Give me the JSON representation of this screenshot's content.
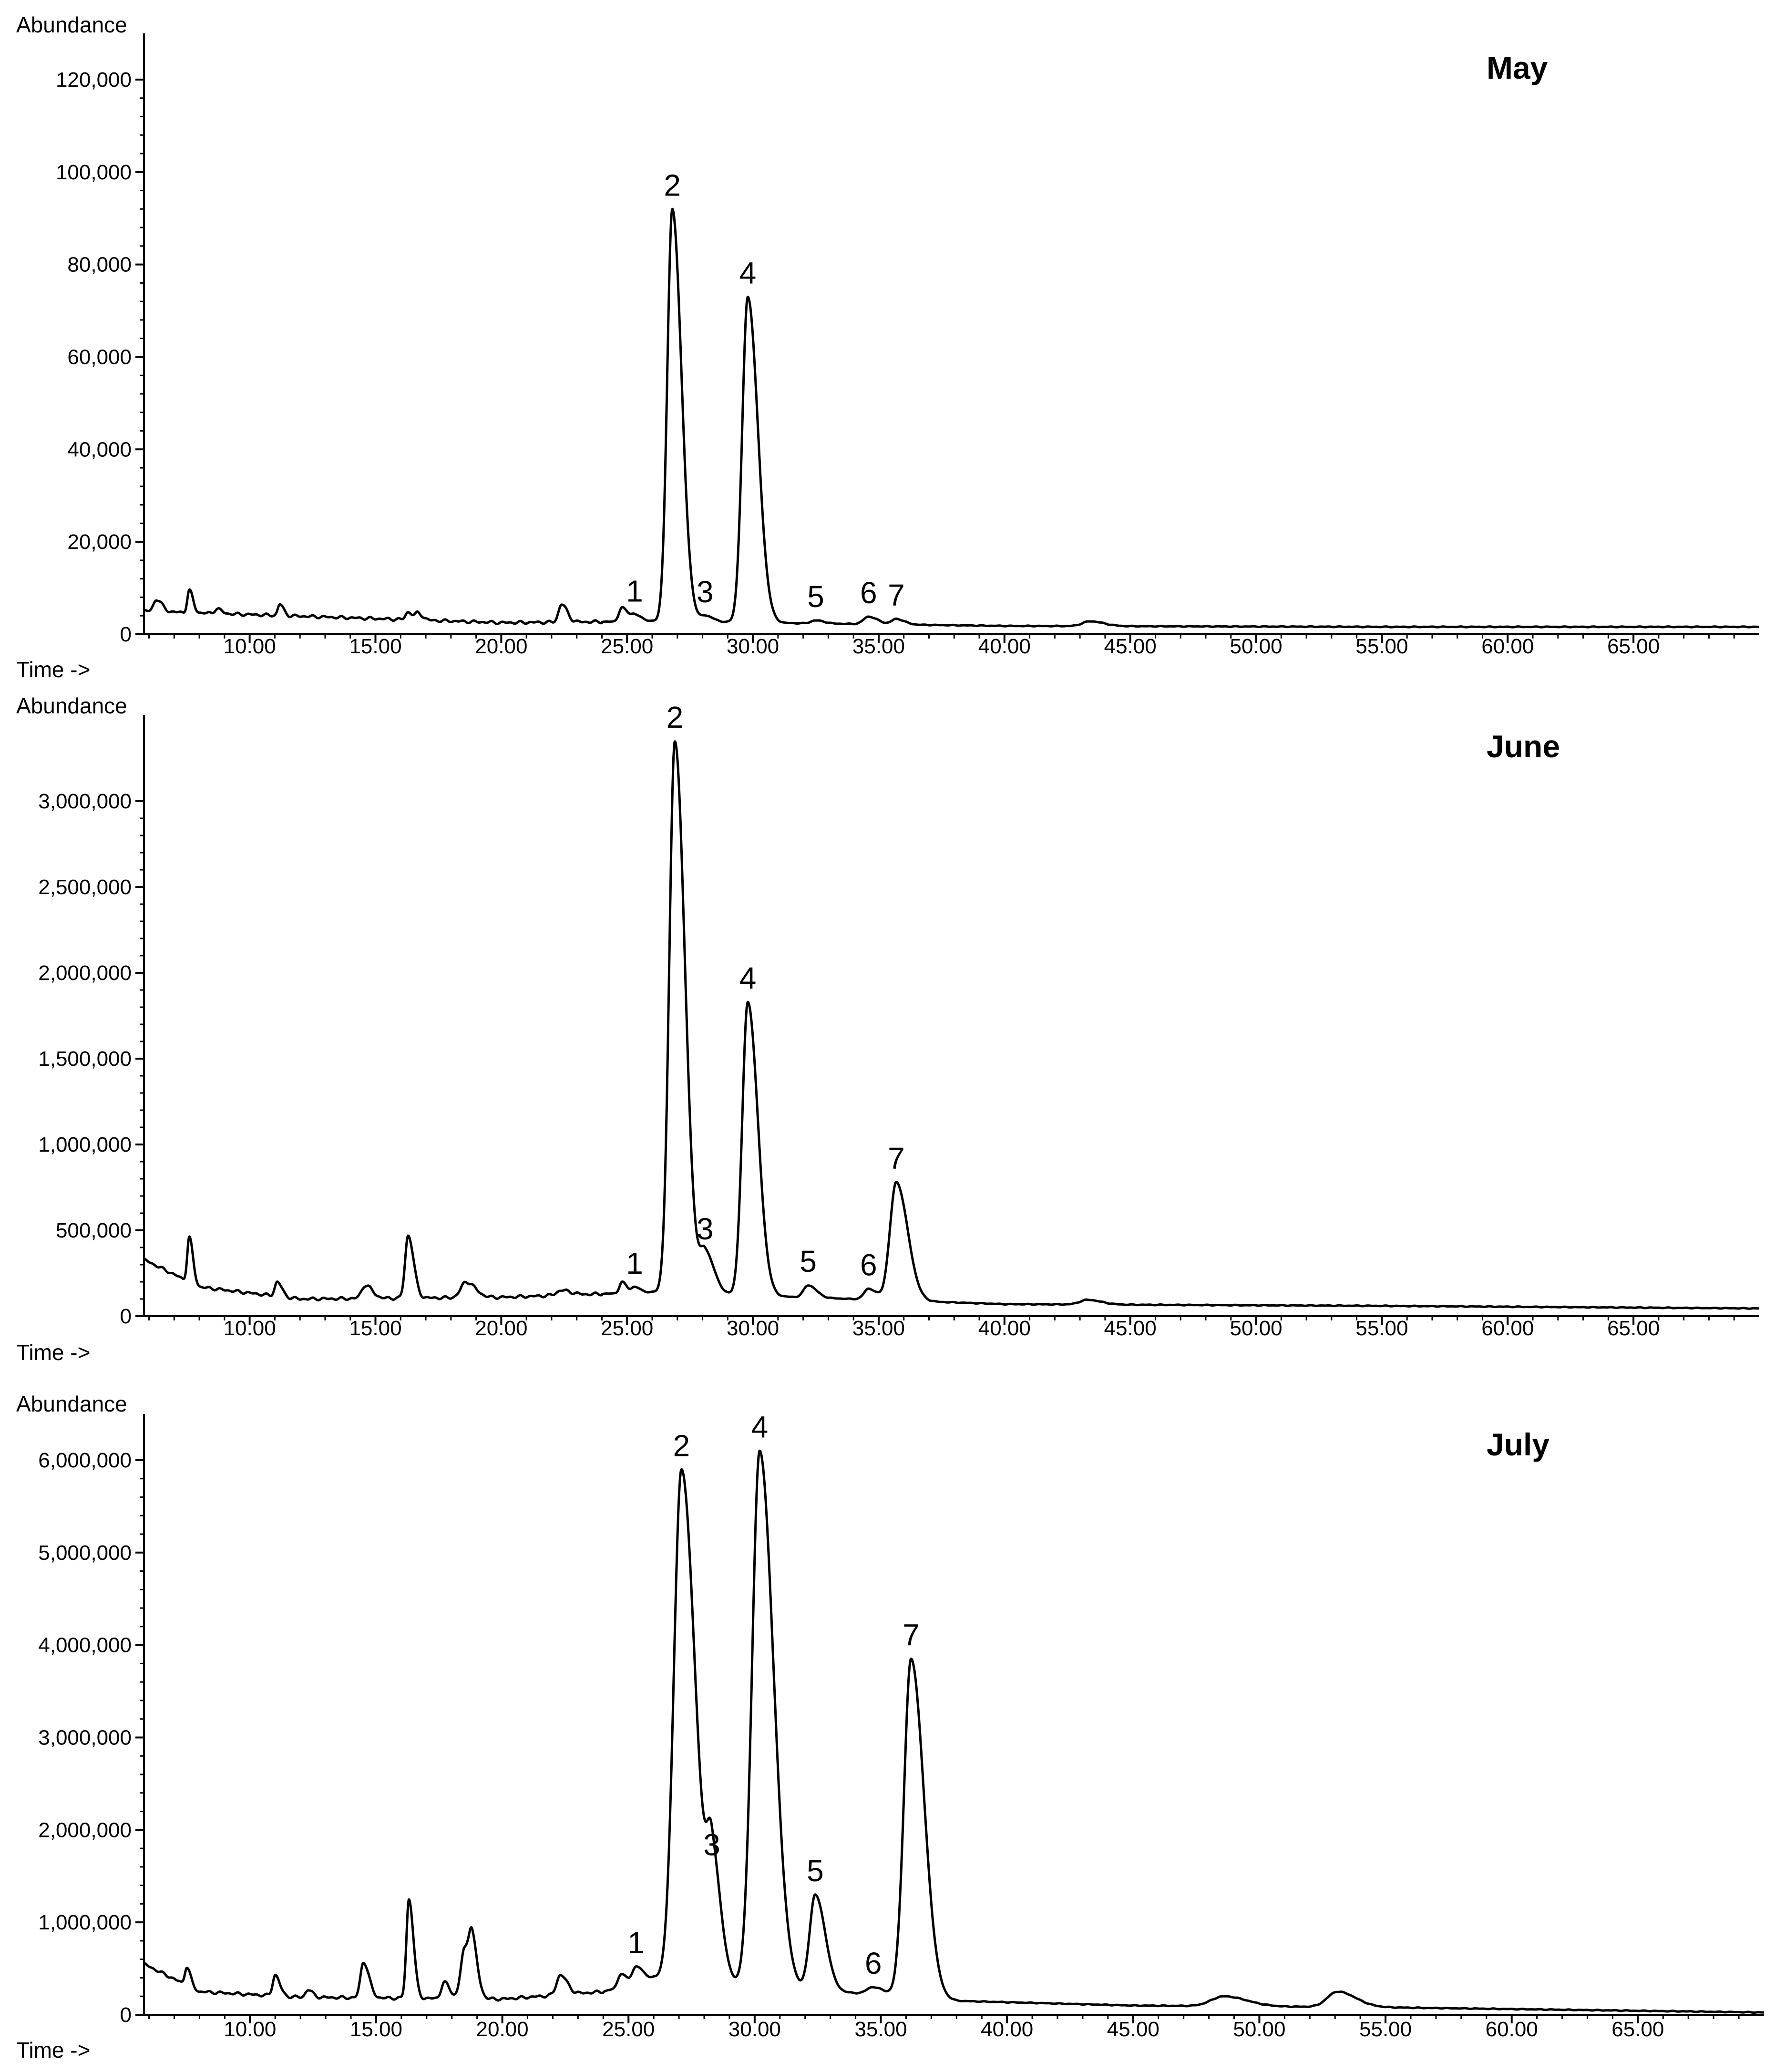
{
  "chart_data": [
    {
      "type": "line",
      "title": "May",
      "ylabel": "Abundance",
      "xlabel": "Time ->",
      "xlim": [
        5.8,
        70
      ],
      "ylim": [
        0,
        130000
      ],
      "x_ticks": [
        10,
        15,
        20,
        25,
        30,
        35,
        40,
        45,
        50,
        55,
        60,
        65
      ],
      "x_tick_labels": [
        "10.00",
        "15.00",
        "20.00",
        "25.00",
        "30.00",
        "35.00",
        "40.00",
        "45.00",
        "50.00",
        "55.00",
        "60.00",
        "65.00"
      ],
      "y_ticks": [
        0,
        20000,
        40000,
        60000,
        80000,
        100000,
        120000
      ],
      "y_tick_labels": [
        "0",
        "20,000",
        "40,000",
        "60,000",
        "80,000",
        "100,000",
        "120,000"
      ],
      "baseline": [
        [
          5.8,
          5000
        ],
        [
          20,
          2500
        ],
        [
          26,
          2800
        ],
        [
          40,
          1800
        ],
        [
          55,
          1600
        ],
        [
          70,
          1600
        ]
      ],
      "peaks": [
        {
          "label": "",
          "x": 6.3,
          "y": 7500,
          "w": 0.12
        },
        {
          "label": "",
          "x": 7.6,
          "y": 9500,
          "w": 0.08
        },
        {
          "label": "",
          "x": 8.7,
          "y": 5500,
          "w": 0.1
        },
        {
          "label": "",
          "x": 11.2,
          "y": 6500,
          "w": 0.08
        },
        {
          "label": "",
          "x": 16.3,
          "y": 4800,
          "w": 0.1
        },
        {
          "label": "",
          "x": 16.7,
          "y": 4500,
          "w": 0.1
        },
        {
          "label": "",
          "x": 22.4,
          "y": 6500,
          "w": 0.12
        },
        {
          "label": "",
          "x": 24.8,
          "y": 5800,
          "w": 0.12
        },
        {
          "label": "1",
          "x": 25.3,
          "y": 4200,
          "w": 0.15
        },
        {
          "label": "2",
          "x": 26.8,
          "y": 92000,
          "w": 0.2
        },
        {
          "label": "3",
          "x": 28.1,
          "y": 4000,
          "w": 0.18
        },
        {
          "label": "4",
          "x": 29.8,
          "y": 73000,
          "w": 0.22
        },
        {
          "label": "5",
          "x": 32.5,
          "y": 3000,
          "w": 0.18
        },
        {
          "label": "6",
          "x": 34.6,
          "y": 3800,
          "w": 0.2
        },
        {
          "label": "7",
          "x": 35.7,
          "y": 3300,
          "w": 0.18
        },
        {
          "label": "",
          "x": 43.4,
          "y": 2800,
          "w": 0.3
        }
      ]
    },
    {
      "type": "line",
      "title": "June",
      "ylabel": "Abundance",
      "xlabel": "Time ->",
      "xlim": [
        5.8,
        70
      ],
      "ylim": [
        0,
        3500000
      ],
      "x_ticks": [
        10,
        15,
        20,
        25,
        30,
        35,
        40,
        45,
        50,
        55,
        60,
        65
      ],
      "x_tick_labels": [
        "10.00",
        "15.00",
        "20.00",
        "25.00",
        "30.00",
        "35.00",
        "40.00",
        "45.00",
        "50.00",
        "55.00",
        "60.00",
        "65.00"
      ],
      "y_ticks": [
        0,
        500000,
        1000000,
        1500000,
        2000000,
        2500000,
        3000000
      ],
      "y_tick_labels": [
        "0",
        "500,000",
        "1,000,000",
        "1,500,000",
        "2,000,000",
        "2,500,000",
        "3,000,000"
      ],
      "baseline": [
        [
          5.8,
          330000
        ],
        [
          8,
          170000
        ],
        [
          12,
          100000
        ],
        [
          20,
          110000
        ],
        [
          26,
          140000
        ],
        [
          40,
          70000
        ],
        [
          55,
          60000
        ],
        [
          70,
          45000
        ]
      ],
      "peaks": [
        {
          "label": "",
          "x": 7.6,
          "y": 460000,
          "w": 0.08
        },
        {
          "label": "",
          "x": 11.1,
          "y": 200000,
          "w": 0.1
        },
        {
          "label": "",
          "x": 14.6,
          "y": 180000,
          "w": 0.15
        },
        {
          "label": "",
          "x": 16.3,
          "y": 470000,
          "w": 0.12
        },
        {
          "label": "",
          "x": 18.6,
          "y": 200000,
          "w": 0.2
        },
        {
          "label": "",
          "x": 22.4,
          "y": 150000,
          "w": 0.2
        },
        {
          "label": "",
          "x": 24.8,
          "y": 200000,
          "w": 0.1
        },
        {
          "label": "1",
          "x": 25.3,
          "y": 170000,
          "w": 0.12
        },
        {
          "label": "2",
          "x": 26.9,
          "y": 3350000,
          "w": 0.22
        },
        {
          "label": "3",
          "x": 28.1,
          "y": 370000,
          "w": 0.2
        },
        {
          "label": "4",
          "x": 29.8,
          "y": 1830000,
          "w": 0.22
        },
        {
          "label": "5",
          "x": 32.2,
          "y": 180000,
          "w": 0.18
        },
        {
          "label": "6",
          "x": 34.6,
          "y": 160000,
          "w": 0.18
        },
        {
          "label": "7",
          "x": 35.7,
          "y": 780000,
          "w": 0.25
        },
        {
          "label": "",
          "x": 43.3,
          "y": 95000,
          "w": 0.3
        }
      ]
    },
    {
      "type": "line",
      "title": "July",
      "ylabel": "Abundance",
      "xlabel": "Time ->",
      "xlim": [
        5.8,
        70
      ],
      "ylim": [
        0,
        6500000
      ],
      "x_ticks": [
        10,
        15,
        20,
        25,
        30,
        35,
        40,
        45,
        50,
        55,
        60,
        65
      ],
      "x_tick_labels": [
        "10.00",
        "15.00",
        "20.00",
        "25.00",
        "30.00",
        "35.00",
        "40.00",
        "45.00",
        "50.00",
        "55.00",
        "60.00",
        "65.00"
      ],
      "y_ticks": [
        0,
        1000000,
        2000000,
        3000000,
        4000000,
        5000000,
        6000000
      ],
      "y_tick_labels": [
        "0",
        "1,000,000",
        "2,000,000",
        "3,000,000",
        "4,000,000",
        "5,000,000",
        "6,000,000"
      ],
      "baseline": [
        [
          5.8,
          550000
        ],
        [
          8,
          250000
        ],
        [
          12,
          190000
        ],
        [
          20,
          170000
        ],
        [
          24,
          250000
        ],
        [
          26,
          400000
        ],
        [
          38,
          150000
        ],
        [
          45,
          100000
        ],
        [
          55,
          80000
        ],
        [
          70,
          25000
        ]
      ],
      "peaks": [
        {
          "label": "",
          "x": 7.5,
          "y": 520000,
          "w": 0.08
        },
        {
          "label": "",
          "x": 11.0,
          "y": 430000,
          "w": 0.1
        },
        {
          "label": "",
          "x": 12.3,
          "y": 270000,
          "w": 0.1
        },
        {
          "label": "",
          "x": 14.5,
          "y": 570000,
          "w": 0.12
        },
        {
          "label": "",
          "x": 16.3,
          "y": 1250000,
          "w": 0.1
        },
        {
          "label": "",
          "x": 17.7,
          "y": 350000,
          "w": 0.12
        },
        {
          "label": "",
          "x": 18.5,
          "y": 700000,
          "w": 0.15
        },
        {
          "label": "",
          "x": 18.8,
          "y": 650000,
          "w": 0.12
        },
        {
          "label": "",
          "x": 22.3,
          "y": 430000,
          "w": 0.15
        },
        {
          "label": "",
          "x": 24.7,
          "y": 440000,
          "w": 0.12
        },
        {
          "label": "1",
          "x": 25.3,
          "y": 520000,
          "w": 0.15
        },
        {
          "label": "2",
          "x": 27.1,
          "y": 5900000,
          "w": 0.3
        },
        {
          "label": "3",
          "x": 28.3,
          "y": 1580000,
          "w": 0.2
        },
        {
          "label": "4",
          "x": 30.2,
          "y": 6100000,
          "w": 0.3
        },
        {
          "label": "5",
          "x": 32.4,
          "y": 1300000,
          "w": 0.22
        },
        {
          "label": "6",
          "x": 34.7,
          "y": 300000,
          "w": 0.25
        },
        {
          "label": "7",
          "x": 36.2,
          "y": 3850000,
          "w": 0.28
        },
        {
          "label": "",
          "x": 48.6,
          "y": 200000,
          "w": 0.5
        },
        {
          "label": "",
          "x": 53.1,
          "y": 250000,
          "w": 0.4
        }
      ]
    }
  ]
}
